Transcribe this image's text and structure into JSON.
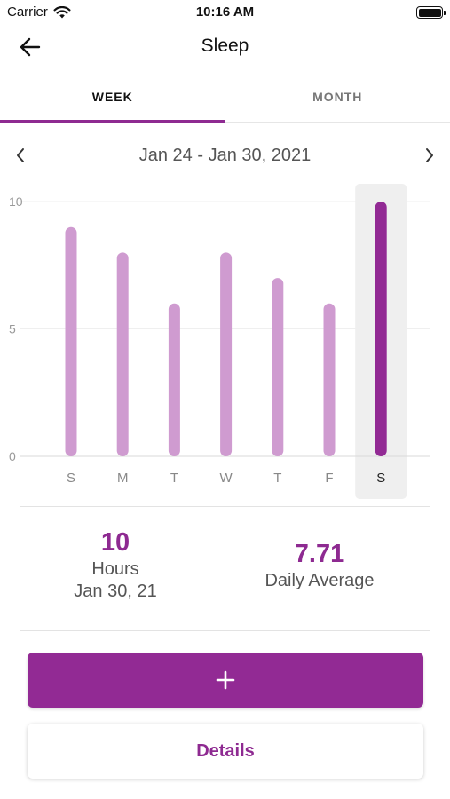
{
  "status_bar": {
    "carrier": "Carrier",
    "time": "10:16 AM"
  },
  "nav": {
    "title": "Sleep"
  },
  "tabs": [
    {
      "label": "WEEK",
      "active": true
    },
    {
      "label": "MONTH",
      "active": false
    }
  ],
  "range": {
    "label": "Jan 24 - Jan 30, 2021"
  },
  "colors": {
    "accent": "#8e2a91",
    "bar": "#cf9bd0",
    "selected_bar": "#922a94",
    "selected_bg": "#efefef"
  },
  "chart_data": {
    "type": "bar",
    "categories": [
      "S",
      "M",
      "T",
      "W",
      "T",
      "F",
      "S"
    ],
    "values": [
      9,
      8,
      6,
      8,
      7,
      6,
      10
    ],
    "ylim": [
      0,
      10
    ],
    "yticks": [
      "0",
      "5",
      "10"
    ],
    "selected_index": 6,
    "grid": true
  },
  "stats": {
    "selected_value": "10",
    "selected_unit": "Hours",
    "selected_date": "Jan 30, 21",
    "average_value": "7.71",
    "average_label": "Daily Average"
  },
  "actions": {
    "add_icon": "plus-icon",
    "details_label": "Details"
  }
}
